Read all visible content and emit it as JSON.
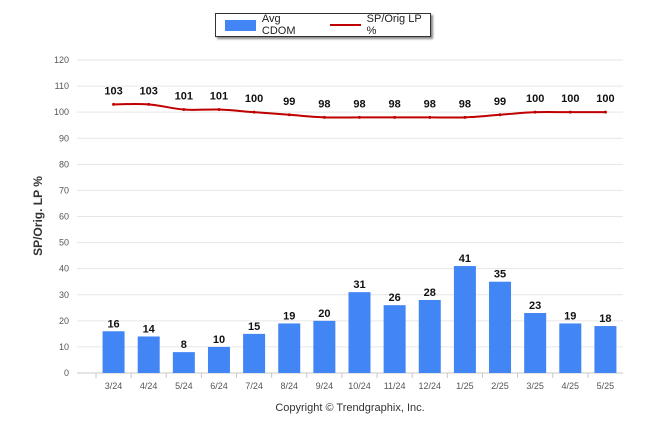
{
  "chart_data": {
    "type": "bar",
    "categories": [
      "3/24",
      "4/24",
      "5/24",
      "6/24",
      "7/24",
      "8/24",
      "9/24",
      "10/24",
      "11/24",
      "12/24",
      "1/25",
      "2/25",
      "3/25",
      "4/25",
      "5/25"
    ],
    "series": [
      {
        "name": "Avg CDOM",
        "type": "bar",
        "color": "#4285f4",
        "values": [
          16,
          14,
          8,
          10,
          15,
          19,
          20,
          31,
          26,
          28,
          41,
          35,
          23,
          19,
          18
        ]
      },
      {
        "name": "SP/Orig LP %",
        "type": "line",
        "color": "#c00000",
        "values": [
          103,
          103,
          101,
          101,
          100,
          99,
          98,
          98,
          98,
          98,
          98,
          99,
          100,
          100,
          100
        ]
      }
    ],
    "ylabel": "SP/Orig. LP %",
    "ylim": [
      0,
      120
    ],
    "yticks": [
      0,
      10,
      20,
      30,
      40,
      50,
      60,
      70,
      80,
      90,
      100,
      110,
      120
    ],
    "grid": true,
    "legend_position": "top-center"
  },
  "footer": {
    "copyright": "Copyright © Trendgraphix, Inc."
  }
}
